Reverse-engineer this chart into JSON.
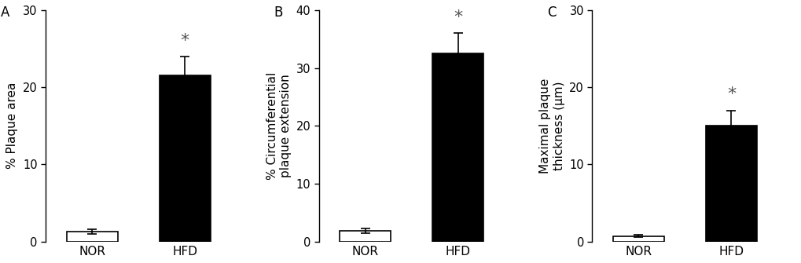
{
  "panels": [
    {
      "label": "A",
      "ylabel": "% Plaque area",
      "ylim": [
        0,
        30
      ],
      "yticks": [
        0,
        10,
        20,
        30
      ],
      "categories": [
        "NOR",
        "HFD"
      ],
      "values": [
        1.3,
        21.5
      ],
      "errors": [
        0.3,
        2.5
      ],
      "bar_colors": [
        "white",
        "black"
      ],
      "bar_edgecolors": [
        "black",
        "black"
      ],
      "significance": [
        false,
        true
      ]
    },
    {
      "label": "B",
      "ylabel": "% Circumferential\nplaque extension",
      "ylim": [
        0,
        40
      ],
      "yticks": [
        0,
        10,
        20,
        30,
        40
      ],
      "categories": [
        "NOR",
        "HFD"
      ],
      "values": [
        1.8,
        32.5
      ],
      "errors": [
        0.4,
        3.5
      ],
      "bar_colors": [
        "white",
        "black"
      ],
      "bar_edgecolors": [
        "black",
        "black"
      ],
      "significance": [
        false,
        true
      ]
    },
    {
      "label": "C",
      "ylabel": "Maximal plaque\nthickness (μm)",
      "ylim": [
        0,
        30
      ],
      "yticks": [
        0,
        10,
        20,
        30
      ],
      "categories": [
        "NOR",
        "HFD"
      ],
      "values": [
        0.7,
        15.0
      ],
      "errors": [
        0.15,
        2.0
      ],
      "bar_colors": [
        "white",
        "black"
      ],
      "bar_edgecolors": [
        "black",
        "black"
      ],
      "significance": [
        false,
        true
      ]
    }
  ],
  "background_color": "#ffffff",
  "bar_width": 0.55,
  "fontsize": 11,
  "label_fontsize": 12,
  "tick_fontsize": 10.5,
  "star_fontsize": 16,
  "star_color": "#555555"
}
